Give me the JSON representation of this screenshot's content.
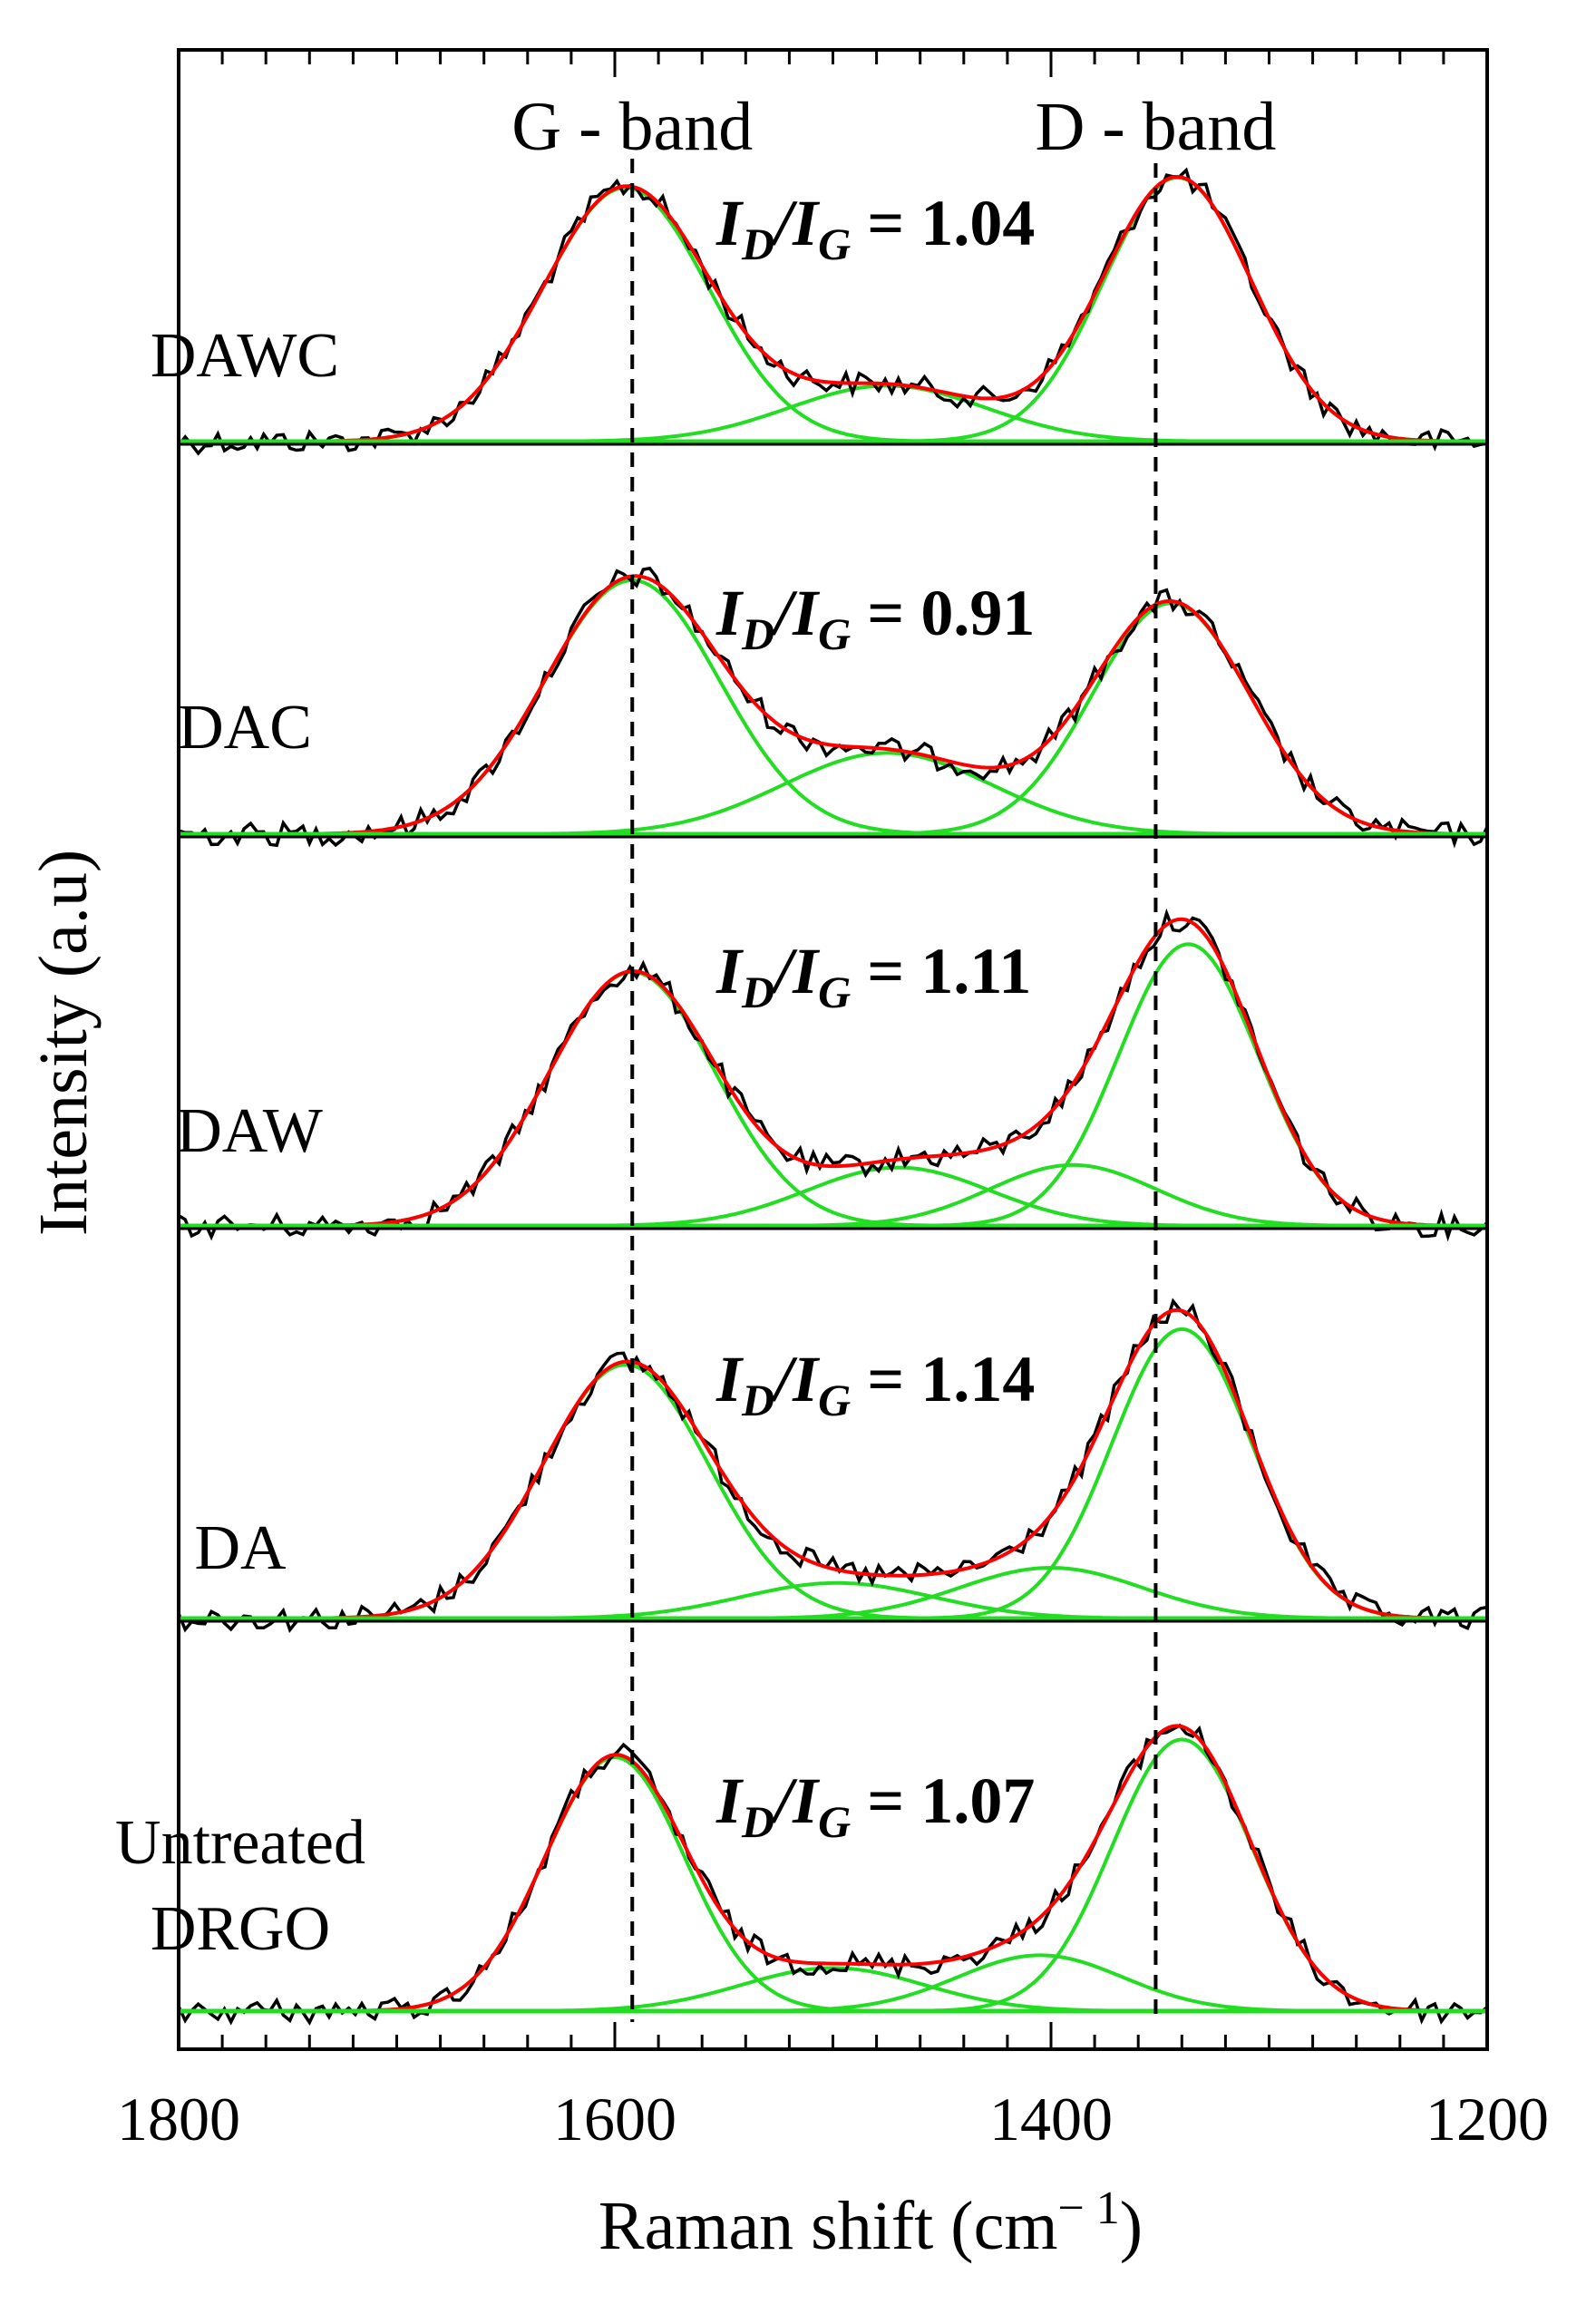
{
  "chart_data": {
    "type": "line",
    "title": "",
    "xlabel": "Raman shift (cm",
    "xlabel_unit_sup": "− 1",
    "xlabel_close": ")",
    "ylabel": "Intensity (a.u)",
    "xlim": [
      1800,
      1200
    ],
    "x_reversed": true,
    "xticks": [
      1800,
      1600,
      1400,
      1200
    ],
    "xtick_labels": [
      "1800",
      "1600",
      "1400",
      "1200"
    ],
    "reference_lines": [
      {
        "name": "G - band",
        "x": 1592
      },
      {
        "name": "D - band",
        "x": 1352
      }
    ],
    "fit_colors": {
      "raw": "#000000",
      "total_fit": "#ff0000",
      "components": "#22dd22"
    },
    "ratio_prefix": "I",
    "ratio_sub_d": "D",
    "ratio_sub_g": "G",
    "ratio_equals": " = ",
    "panels": [
      {
        "sample": [
          "DAWC"
        ],
        "id_ig": "1.04",
        "components": [
          {
            "center": 1595,
            "height": 1.0,
            "width": 38
          },
          {
            "center": 1475,
            "height": 0.22,
            "width": 45
          },
          {
            "center": 1342,
            "height": 1.04,
            "width": 34
          }
        ]
      },
      {
        "sample": [
          "DAC"
        ],
        "id_ig": "0.91",
        "components": [
          {
            "center": 1592,
            "height": 1.0,
            "width": 40
          },
          {
            "center": 1475,
            "height": 0.32,
            "width": 48
          },
          {
            "center": 1345,
            "height": 0.91,
            "width": 36
          }
        ]
      },
      {
        "sample": [
          "DAW"
        ],
        "id_ig": "1.11",
        "components": [
          {
            "center": 1592,
            "height": 1.0,
            "width": 38
          },
          {
            "center": 1470,
            "height": 0.23,
            "width": 42
          },
          {
            "center": 1390,
            "height": 0.24,
            "width": 38
          },
          {
            "center": 1337,
            "height": 1.11,
            "width": 32
          }
        ]
      },
      {
        "sample": [
          "DA"
        ],
        "id_ig": "1.14",
        "components": [
          {
            "center": 1595,
            "height": 1.0,
            "width": 38
          },
          {
            "center": 1498,
            "height": 0.14,
            "width": 44
          },
          {
            "center": 1400,
            "height": 0.2,
            "width": 42
          },
          {
            "center": 1340,
            "height": 1.14,
            "width": 32
          }
        ]
      },
      {
        "sample": [
          "Untreated",
          "DRGO"
        ],
        "id_ig": "1.07",
        "components": [
          {
            "center": 1600,
            "height": 1.0,
            "width": 32
          },
          {
            "center": 1500,
            "height": 0.17,
            "width": 42
          },
          {
            "center": 1405,
            "height": 0.22,
            "width": 38
          },
          {
            "center": 1340,
            "height": 1.07,
            "width": 32
          }
        ]
      }
    ]
  }
}
